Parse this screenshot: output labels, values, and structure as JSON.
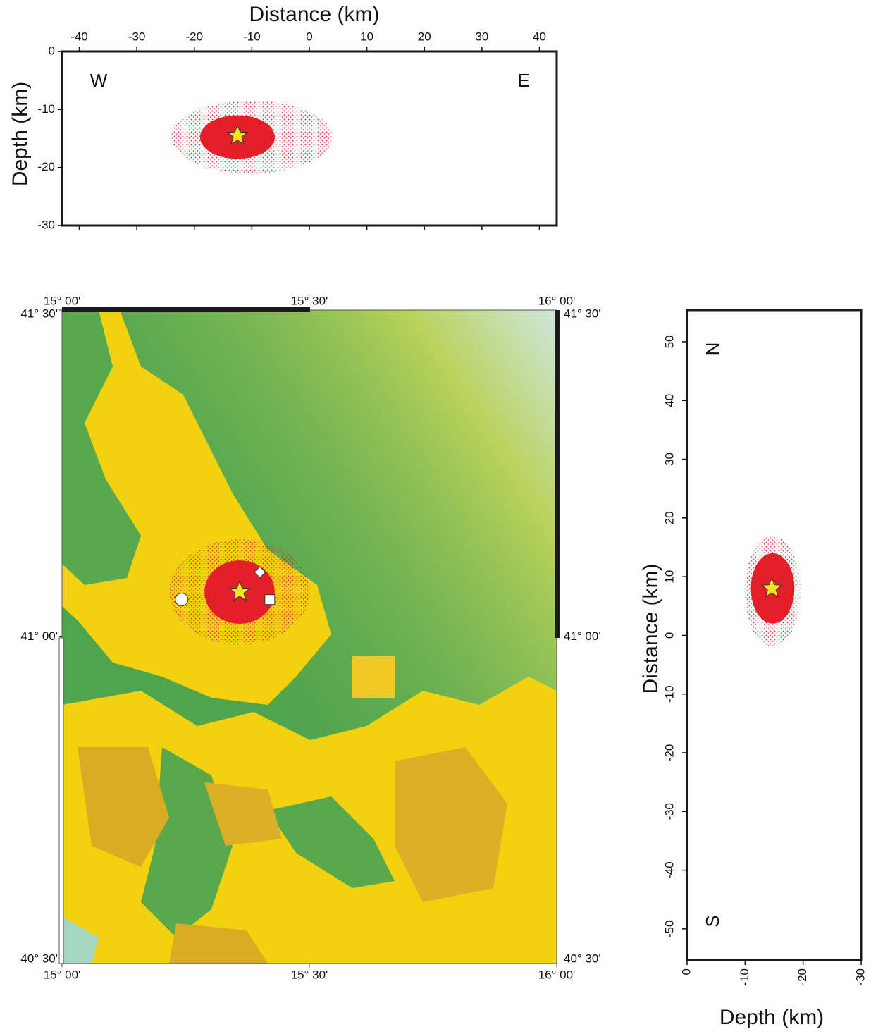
{
  "chart_data": [
    {
      "type": "scatter",
      "xlabel": "Distance (km)",
      "ylabel": "Depth (km)",
      "xlim": [
        -43,
        43
      ],
      "ylim": [
        -30,
        0
      ],
      "xticks": [
        -40,
        -30,
        -20,
        -10,
        0,
        10,
        20,
        30,
        40
      ],
      "yticks": [
        0,
        -10,
        -20,
        -30
      ],
      "annotations": [
        "W",
        "E"
      ],
      "cloud": {
        "x": [
          -24,
          4
        ],
        "y": [
          -21,
          -8.5
        ]
      },
      "core": {
        "x": [
          -19,
          -6
        ],
        "y": [
          -18.5,
          -11
        ]
      },
      "epicenter": {
        "x": -12.5,
        "y": -14.5
      },
      "color": "#e3202a",
      "star_color": "#f6e51c"
    },
    {
      "type": "map",
      "xlim": [
        15,
        16
      ],
      "ylim": [
        40.5,
        41.5
      ],
      "xticks": [
        {
          "value": 15,
          "label": "15° 00'"
        },
        {
          "value": 15.5,
          "label": "15° 30'"
        },
        {
          "value": 16,
          "label": "16° 00'"
        }
      ],
      "yticks": [
        {
          "value": 41.5,
          "label": "41° 30'"
        },
        {
          "value": 41,
          "label": "41° 00'"
        },
        {
          "value": 40.5,
          "label": "40° 30'"
        }
      ],
      "cloud": {
        "x": [
          15.217,
          15.501
        ],
        "y": [
          40.988,
          41.149
        ]
      },
      "core": {
        "x": [
          15.288,
          15.43
        ],
        "y": [
          41.02,
          41.117
        ]
      },
      "epicenter": {
        "x": 15.359,
        "y": 41.069
      },
      "stations": [
        {
          "shape": "circle",
          "x": 15.242,
          "y": 41.057
        },
        {
          "shape": "diamond",
          "x": 15.4,
          "y": 41.099
        },
        {
          "shape": "square",
          "x": 15.42,
          "y": 41.057
        }
      ],
      "color": "#e3202a",
      "star_color": "#f6e51c"
    },
    {
      "type": "scatter",
      "xlabel": "Depth (km)",
      "ylabel": "Distance (km)",
      "xlim": [
        0,
        -30
      ],
      "ylim": [
        -55.3,
        55.4
      ],
      "xticks": [
        0,
        -10,
        -20,
        -30
      ],
      "yticks": [
        -50,
        -40,
        -30,
        -20,
        -10,
        0,
        10,
        20,
        30,
        40,
        50
      ],
      "annotations": [
        "N",
        "S"
      ],
      "cloud": {
        "x": [
          -10,
          -19.5
        ],
        "y": [
          -2,
          17
        ]
      },
      "core": {
        "x": [
          -11,
          -18.5
        ],
        "y": [
          2,
          14
        ]
      },
      "epicenter": {
        "x": -14.6,
        "y": 8
      },
      "color": "#e3202a",
      "star_color": "#f6e51c"
    }
  ]
}
